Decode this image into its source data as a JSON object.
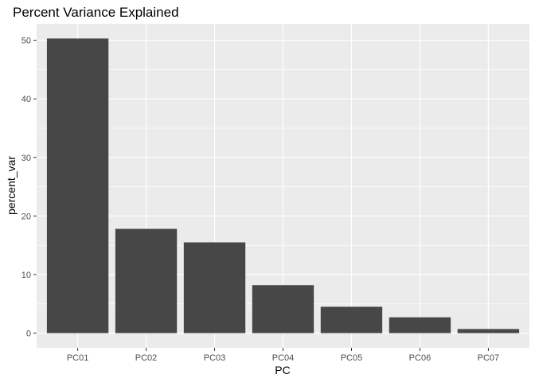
{
  "chart_data": {
    "type": "bar",
    "title": "Percent Variance Explained",
    "xlabel": "PC",
    "ylabel": "percent_var",
    "categories": [
      "PC01",
      "PC02",
      "PC03",
      "PC04",
      "PC05",
      "PC06",
      "PC07"
    ],
    "values": [
      50.3,
      17.8,
      15.5,
      8.2,
      4.5,
      2.7,
      0.7
    ],
    "ylim": [
      -2.5,
      52.8
    ],
    "yticks": [
      0,
      10,
      20,
      30,
      40,
      50
    ],
    "ytick_labels": [
      "0",
      "10",
      "20",
      "30",
      "40",
      "50"
    ],
    "grid": true,
    "legend": "none",
    "colors": {
      "panel_background": "#ebebeb",
      "grid_major": "#ffffff",
      "bar_fill": "#474747",
      "tick_text": "#4d4d4d",
      "tick_mark": "#333333"
    }
  }
}
